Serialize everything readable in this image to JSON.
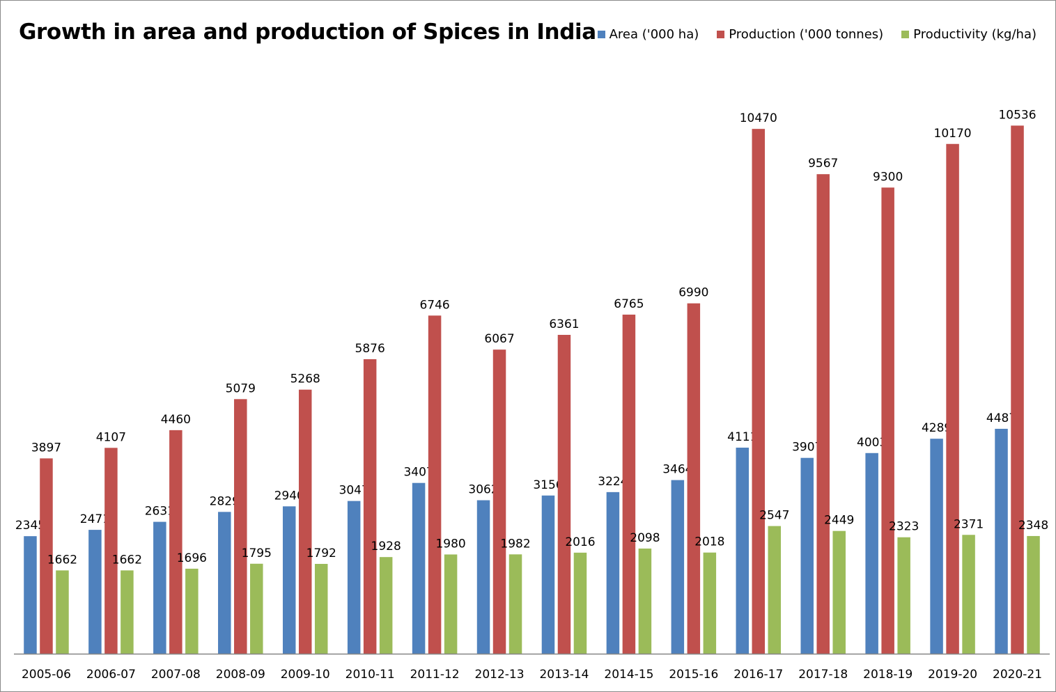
{
  "chart_data": {
    "type": "bar",
    "title": "Growth in area and production of Spices in India",
    "categories": [
      "2005-06",
      "2006-07",
      "2007-08",
      "2008-09",
      "2009-10",
      "2010-11",
      "2011-12",
      "2012-13",
      "2013-14",
      "2014-15",
      "2015-16",
      "2016-17",
      "2017-18",
      "2018-19",
      "2019-20",
      "2020-21"
    ],
    "series": [
      {
        "name": "Area ('000 ha)",
        "color": "#4F81BD",
        "values": [
          2345,
          2471,
          2631,
          2829,
          2940,
          3047,
          3407,
          3062,
          3156,
          3224,
          3464,
          4111,
          3907,
          4003,
          4289,
          4487
        ]
      },
      {
        "name": "Production ('000 tonnes)",
        "color": "#C0504D",
        "values": [
          3897,
          4107,
          4460,
          5079,
          5268,
          5876,
          6746,
          6067,
          6361,
          6765,
          6990,
          10470,
          9567,
          9300,
          10170,
          10536
        ]
      },
      {
        "name": "Productivity (kg/ha)",
        "color": "#9BBB59",
        "values": [
          1662,
          1662,
          1696,
          1795,
          1792,
          1928,
          1980,
          1982,
          2016,
          2098,
          2018,
          2547,
          2449,
          2323,
          2371,
          2348
        ]
      }
    ],
    "xlabel": "",
    "ylabel": "",
    "ylim": [
      0,
      11000
    ],
    "y_axis_visible": false,
    "grid": false,
    "data_labels": true,
    "legend_position": "top-right"
  }
}
